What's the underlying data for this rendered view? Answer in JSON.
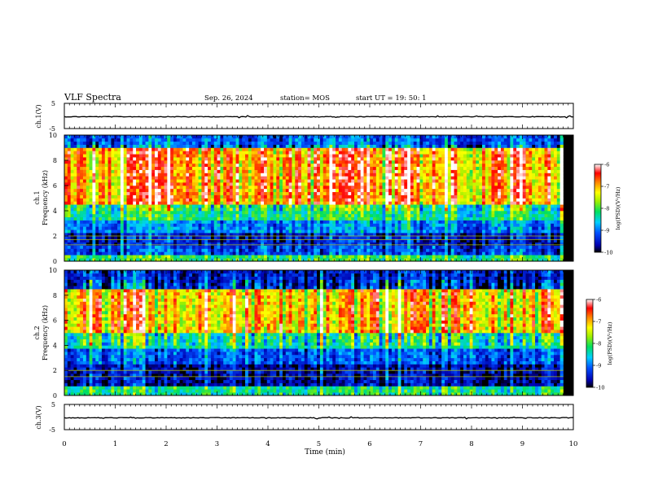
{
  "header": {
    "title": "VLF Spectra",
    "date": "Sep. 26, 2024",
    "station": "station= MOS",
    "start": "start  UT =   19: 50: 1"
  },
  "chart_data": [
    {
      "type": "line",
      "ylabel": "ch.1(V)",
      "ylim": [
        -5,
        5
      ],
      "yticks": [
        "5",
        "-5"
      ],
      "xlim": [
        0,
        10
      ],
      "series": [
        {
          "description_free": true,
          "values_level": -1
        }
      ]
    },
    {
      "type": "heatmap",
      "ylabel": "ch.1",
      "ylabel2": "Frequency  (kHz)",
      "ylim": [
        0,
        10
      ],
      "yticks": [
        "0",
        "2",
        "4",
        "6",
        "8",
        "10"
      ],
      "xlim": [
        0,
        9.8
      ],
      "colorbar": {
        "label": "log(PSD)(V²/Hz)",
        "range": [
          -10,
          -6
        ],
        "ticks": [
          "-6",
          "-7",
          "-8",
          "-9",
          "-10"
        ]
      },
      "bands": [
        {
          "from": 0,
          "to": 0.6,
          "level": -8.2
        },
        {
          "from": 0.6,
          "to": 1.2,
          "level": -9.3
        },
        {
          "from": 1.2,
          "to": 2.2,
          "level": -9.6
        },
        {
          "from": 2.2,
          "to": 3.2,
          "level": -9.0
        },
        {
          "from": 3.2,
          "to": 4.5,
          "level": -8.3
        },
        {
          "from": 4.5,
          "to": 9.0,
          "level": -7.0
        },
        {
          "from": 9.0,
          "to": 10,
          "level": -9.2
        }
      ],
      "lines_khz": [
        1.3,
        1.7,
        2.0
      ]
    },
    {
      "type": "heatmap",
      "ylabel": "ch.2",
      "ylabel2": "Frequency  (kHz)",
      "ylim": [
        0,
        10
      ],
      "yticks": [
        "0",
        "2",
        "4",
        "6",
        "8",
        "10"
      ],
      "xlim": [
        0,
        9.8
      ],
      "colorbar": {
        "label": "log(PSD)(V²/Hz)",
        "range": [
          -10,
          -6
        ],
        "ticks": [
          "-6",
          "-7",
          "-8",
          "-9",
          "-10"
        ]
      },
      "bands": [
        {
          "from": 0,
          "to": 0.7,
          "level": -8.3
        },
        {
          "from": 0.7,
          "to": 2.5,
          "level": -9.7
        },
        {
          "from": 2.5,
          "to": 3.8,
          "level": -9.2
        },
        {
          "from": 3.8,
          "to": 5.0,
          "level": -8.4
        },
        {
          "from": 5.0,
          "to": 8.5,
          "level": -7.2
        },
        {
          "from": 8.5,
          "to": 10,
          "level": -9.5
        }
      ],
      "lines_khz": [
        1.5,
        2.0
      ]
    },
    {
      "type": "line",
      "ylabel": "ch.3(V)",
      "ylim": [
        -5,
        5
      ],
      "yticks": [
        "5",
        "-5"
      ],
      "xlim": [
        0,
        10
      ],
      "series": [
        {
          "values_level": -1
        }
      ]
    }
  ],
  "xaxis": {
    "label": "Time  (min)",
    "ticks": [
      "0",
      "1",
      "2",
      "3",
      "4",
      "5",
      "6",
      "7",
      "8",
      "9",
      "10"
    ]
  }
}
